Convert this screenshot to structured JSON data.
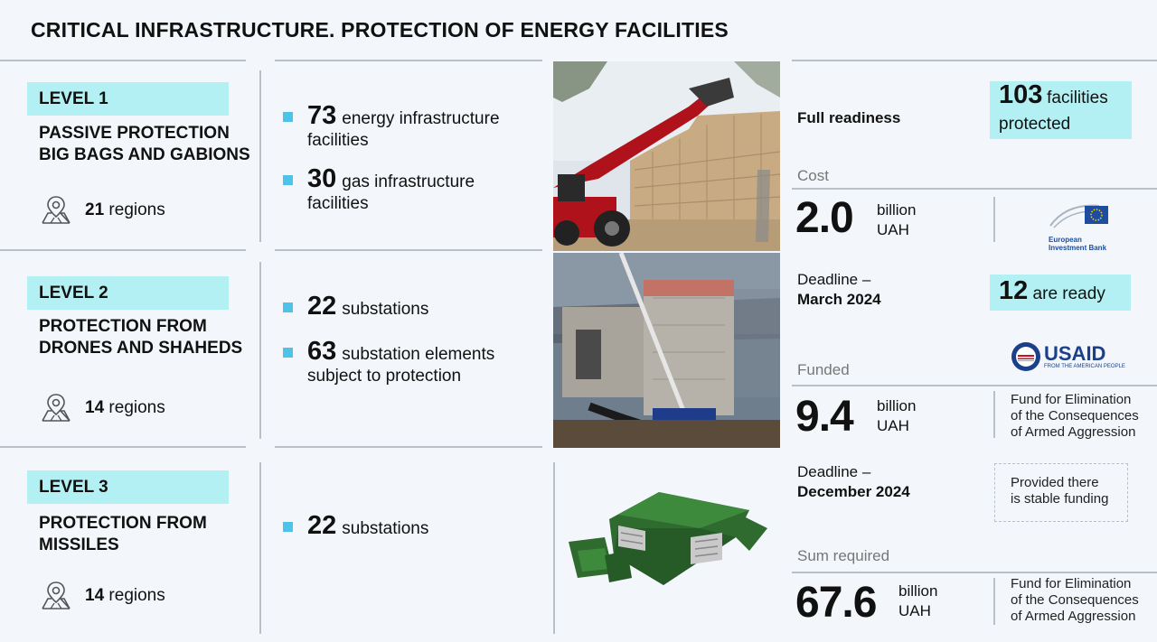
{
  "title": "CRITICAL INFRASTRUCTURE. PROTECTION OF ENERGY FACILITIES",
  "levels": [
    {
      "badge": "LEVEL 1",
      "title_line1": "PASSIVE PROTECTION",
      "title_line2": "BIG BAGS AND GABIONS",
      "regions_num": "21",
      "regions_label": "regions",
      "bullets": [
        {
          "num": "73",
          "text1": "energy infrastructure",
          "text2": "facilities"
        },
        {
          "num": "30",
          "text1": "gas infrastructure",
          "text2": "facilities"
        }
      ],
      "readiness_label": "Full readiness",
      "status_num": "103",
      "status_text1": "facilities",
      "status_text2": "protected",
      "money_label": "Cost",
      "money_value": "2.0",
      "money_unit1": "billion",
      "money_unit2": "UAH",
      "logo_text1": "European",
      "logo_text2": "Investment Bank"
    },
    {
      "badge": "LEVEL 2",
      "title_line1": "PROTECTION FROM",
      "title_line2": "DRONES AND SHAHEDS",
      "regions_num": "14",
      "regions_label": "regions",
      "bullets": [
        {
          "num": "22",
          "text1": "substations",
          "text2": ""
        },
        {
          "num": "63",
          "text1": "substation elements",
          "text2": "subject to protection"
        }
      ],
      "deadline_label": "Deadline –",
      "deadline_date": "March 2024",
      "status_num": "12",
      "status_text1": "are ready",
      "logo_text1": "USAID",
      "logo_text2": "FROM THE AMERICAN PEOPLE",
      "money_label": "Funded",
      "money_value": "9.4",
      "money_unit1": "billion",
      "money_unit2": "UAH",
      "fund_line1": "Fund for Elimination",
      "fund_line2": "of the Consequences",
      "fund_line3": "of Armed Aggression"
    },
    {
      "badge": "LEVEL 3",
      "title_line1": "PROTECTION FROM",
      "title_line2": "MISSILES",
      "regions_num": "14",
      "regions_label": "regions",
      "bullets": [
        {
          "num": "22",
          "text1": "substations",
          "text2": ""
        }
      ],
      "deadline_label": "Deadline –",
      "deadline_date": "December 2024",
      "note_line1": "Provided there",
      "note_line2": "is stable funding",
      "money_label": "Sum required",
      "money_value": "67.6",
      "money_unit1": "billion",
      "money_unit2": "UAH",
      "fund_line1": "Fund for Elimination",
      "fund_line2": "of the Consequences",
      "fund_line3": "of Armed Aggression"
    }
  ],
  "colors": {
    "accent": "#b3f0f3",
    "bullet": "#4dc3e8",
    "divider": "#b9c0c7"
  }
}
